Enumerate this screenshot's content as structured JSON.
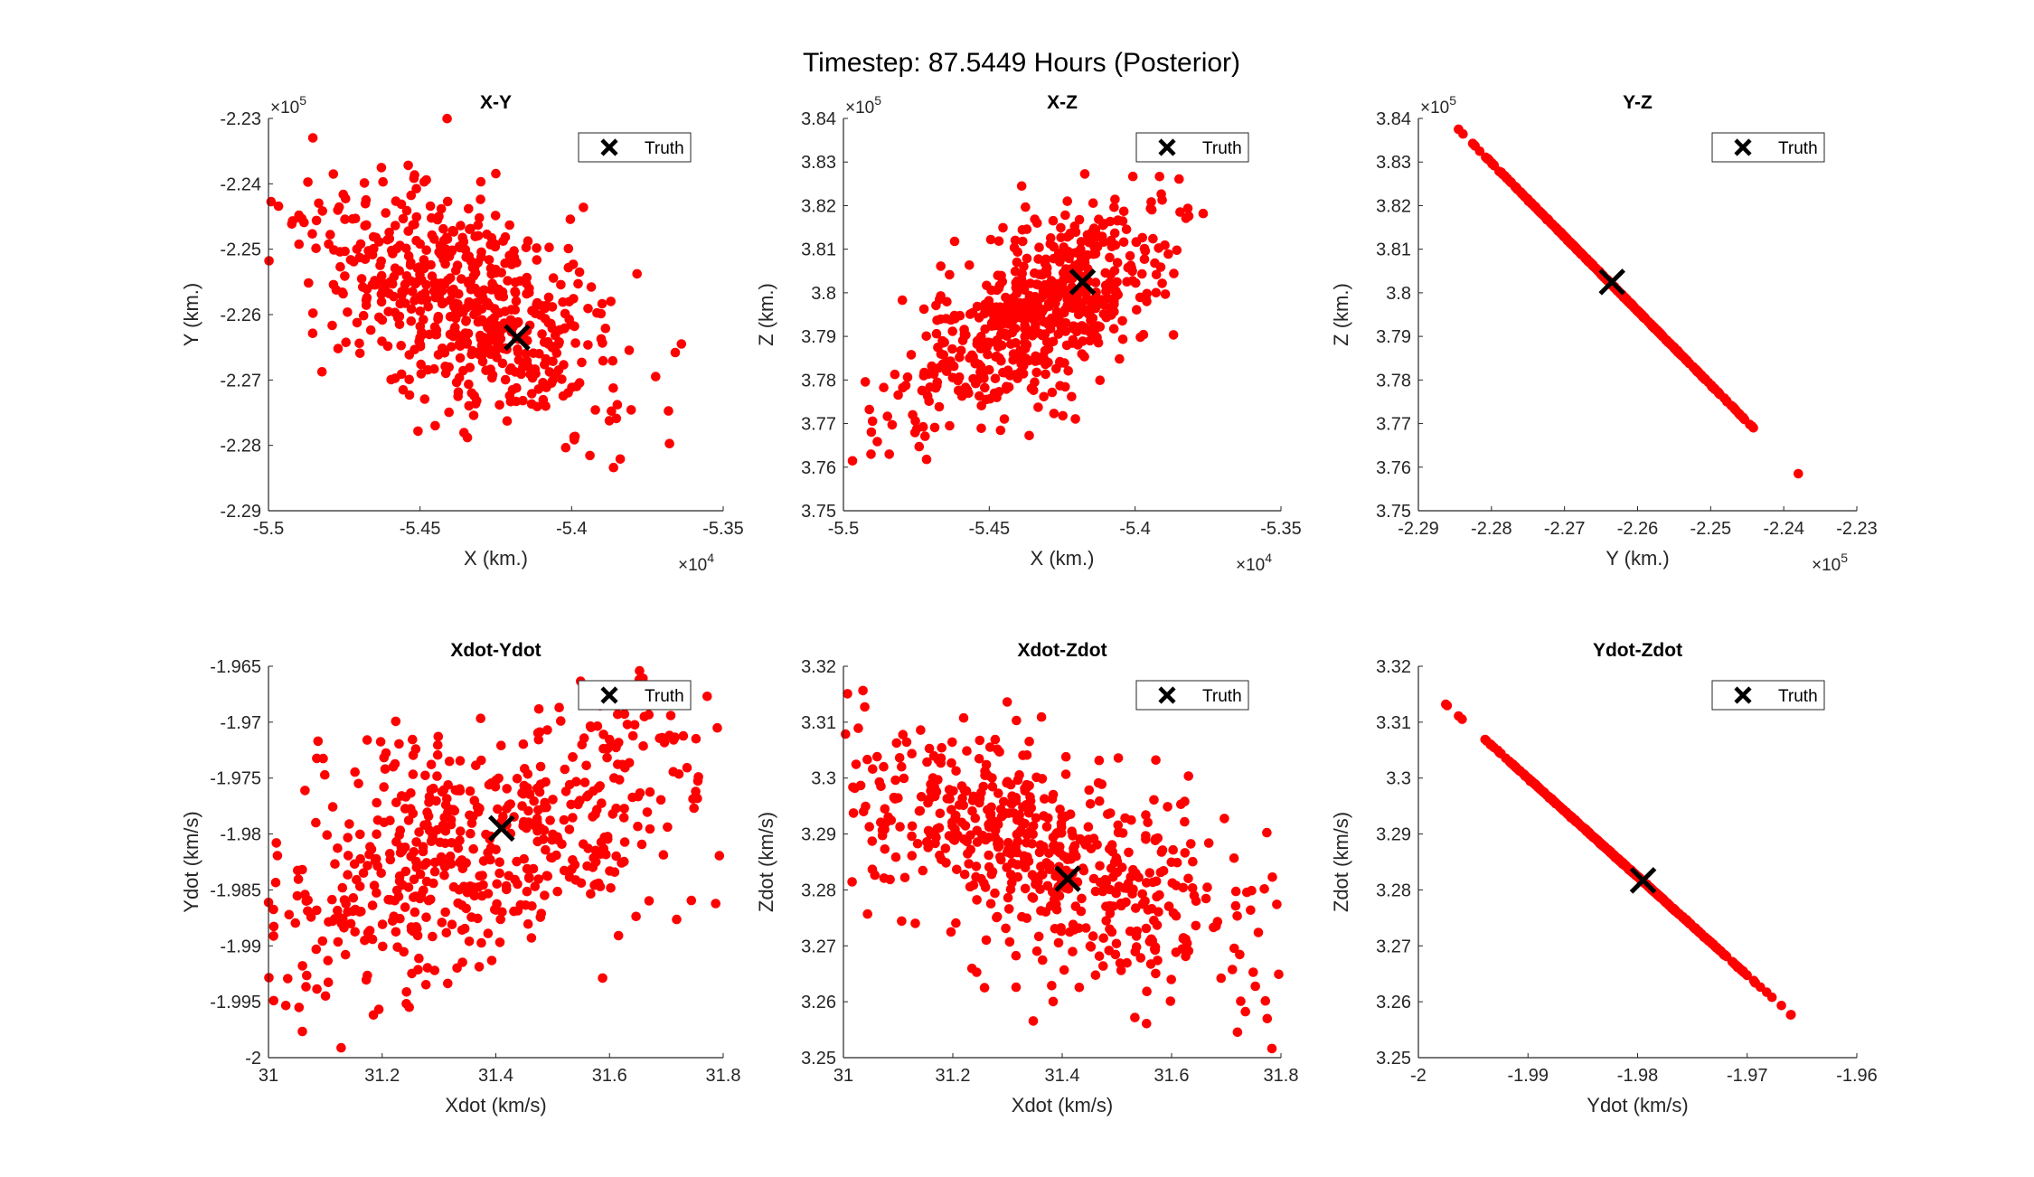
{
  "figure_title": "Timestep: 87.5449 Hours (Posterior)",
  "colors": {
    "scatter": "#ff0000",
    "truth": "#000000",
    "axis": "#262626"
  },
  "chart_data": [
    {
      "type": "scatter",
      "title": "X-Y",
      "xlabel": "X (km.)",
      "ylabel": "Y (km.)",
      "xlim": [
        -55000,
        -53500
      ],
      "ylim": [
        -229000,
        -223000
      ],
      "xticks": [
        -55000,
        -54500,
        -54000,
        -53500
      ],
      "xtick_labels": [
        "-5.5",
        "-5.45",
        "-5.4",
        "-5.35"
      ],
      "yticks": [
        -229000,
        -228000,
        -227000,
        -226000,
        -225000,
        -224000,
        -223000
      ],
      "ytick_labels": [
        "-2.29",
        "-2.28",
        "-2.27",
        "-2.26",
        "-2.25",
        "-2.24",
        "-2.23"
      ],
      "x_exponent": "4",
      "y_exponent": "5",
      "cloud": {
        "mean": [
          -54350,
          -225800
        ],
        "sd_major": 280,
        "sd_minor": 170,
        "n": 600,
        "seed": 11
      },
      "truth": {
        "x": -54180,
        "y": -226350
      },
      "legend": {
        "label": "Truth",
        "position": "top-right"
      }
    },
    {
      "type": "scatter",
      "title": "X-Z",
      "xlabel": "X (km.)",
      "ylabel": "Z (km.)",
      "xlim": [
        -55000,
        -53500
      ],
      "ylim": [
        375000,
        384000
      ],
      "xticks": [
        -55000,
        -54500,
        -54000,
        -53500
      ],
      "xtick_labels": [
        "-5.5",
        "-5.45",
        "-5.4",
        "-5.35"
      ],
      "yticks": [
        375000,
        376000,
        377000,
        378000,
        379000,
        380000,
        381000,
        382000,
        383000,
        384000
      ],
      "ytick_labels": [
        "3.75",
        "3.76",
        "3.77",
        "3.78",
        "3.79",
        "3.8",
        "3.81",
        "3.82",
        "3.83",
        "3.84"
      ],
      "x_exponent": "4",
      "y_exponent": "5",
      "cloud": {
        "mean": [
          -54350,
          379400
        ],
        "sd_major": 280,
        "sd_minor": 130,
        "n": 600,
        "seed": 23
      },
      "truth": {
        "x": -54180,
        "y": 380250
      },
      "legend": {
        "label": "Truth",
        "position": "top-right"
      }
    },
    {
      "type": "scatter",
      "title": "Y-Z",
      "xlabel": "Y (km.)",
      "ylabel": "Z (km.)",
      "xlim": [
        -229000,
        -223000
      ],
      "ylim": [
        375000,
        384000
      ],
      "xticks": [
        -229000,
        -228000,
        -227000,
        -226000,
        -225000,
        -224000,
        -223000
      ],
      "xtick_labels": [
        "-2.29",
        "-2.28",
        "-2.27",
        "-2.26",
        "-2.25",
        "-2.24",
        "-2.23"
      ],
      "yticks": [
        375000,
        376000,
        377000,
        378000,
        379000,
        380000,
        381000,
        382000,
        383000,
        384000
      ],
      "ytick_labels": [
        "3.75",
        "3.76",
        "3.77",
        "3.78",
        "3.79",
        "3.8",
        "3.81",
        "3.82",
        "3.83",
        "3.84"
      ],
      "x_exponent": "5",
      "y_exponent": "5",
      "line": {
        "x0": -228450,
        "y0": 383750,
        "x1": -223800,
        "y1": 375850,
        "center_t": 0.45,
        "sd_t": 0.17,
        "jitter": 0.004,
        "n": 600,
        "seed": 37
      },
      "truth": {
        "x": -226350,
        "y": 380250
      },
      "legend": {
        "label": "Truth",
        "position": "top-right"
      }
    },
    {
      "type": "scatter",
      "title": "Xdot-Ydot",
      "xlabel": "Xdot (km/s)",
      "ylabel": "Ydot (km/s)",
      "xlim": [
        31.0,
        31.8
      ],
      "ylim": [
        -2.0,
        -1.965
      ],
      "xticks": [
        31.0,
        31.2,
        31.4,
        31.6,
        31.8
      ],
      "xtick_labels": [
        "31",
        "31.2",
        "31.4",
        "31.6",
        "31.8"
      ],
      "yticks": [
        -2.0,
        -1.995,
        -1.99,
        -1.985,
        -1.98,
        -1.975,
        -1.97,
        -1.965
      ],
      "ytick_labels": [
        "-2",
        "-1.995",
        "-1.99",
        "-1.985",
        "-1.98",
        "-1.975",
        "-1.97",
        "-1.965"
      ],
      "cloud": {
        "mean": [
          31.36,
          -1.9812
        ],
        "sd_major": 0.25,
        "sd_minor": 0.12,
        "n": 600,
        "seed": 41
      },
      "truth": {
        "x": 31.41,
        "y": -1.9795
      },
      "legend": {
        "label": "Truth",
        "position": "top-right"
      }
    },
    {
      "type": "scatter",
      "title": "Xdot-Zdot",
      "xlabel": "Xdot (km/s)",
      "ylabel": "Zdot (km/s)",
      "xlim": [
        31.0,
        31.8
      ],
      "ylim": [
        3.25,
        3.32
      ],
      "xticks": [
        31.0,
        31.2,
        31.4,
        31.6,
        31.8
      ],
      "xtick_labels": [
        "31",
        "31.2",
        "31.4",
        "31.6",
        "31.8"
      ],
      "yticks": [
        3.25,
        3.26,
        3.27,
        3.28,
        3.29,
        3.3,
        3.31,
        3.32
      ],
      "ytick_labels": [
        "3.25",
        "3.26",
        "3.27",
        "3.28",
        "3.29",
        "3.3",
        "3.31",
        "3.32"
      ],
      "cloud": {
        "mean": [
          31.37,
          3.2855
        ],
        "sd_major": 0.24,
        "sd_minor": 0.1,
        "n": 600,
        "seed": 53
      },
      "truth": {
        "x": 31.41,
        "y": 3.282
      },
      "legend": {
        "label": "Truth",
        "position": "top-right"
      }
    },
    {
      "type": "scatter",
      "title": "Ydot-Zdot",
      "xlabel": "Ydot (km/s)",
      "ylabel": "Zdot (km/s)",
      "xlim": [
        -2.0,
        -1.96
      ],
      "ylim": [
        3.25,
        3.32
      ],
      "xticks": [
        -2.0,
        -1.99,
        -1.98,
        -1.97,
        -1.96
      ],
      "xtick_labels": [
        "-2",
        "-1.99",
        "-1.98",
        "-1.97",
        "-1.96"
      ],
      "yticks": [
        3.25,
        3.26,
        3.27,
        3.28,
        3.29,
        3.3,
        3.31,
        3.32
      ],
      "ytick_labels": [
        "3.25",
        "3.26",
        "3.27",
        "3.28",
        "3.29",
        "3.3",
        "3.31",
        "3.32"
      ],
      "line": {
        "x0": -1.9975,
        "y0": 3.3132,
        "x1": -1.966,
        "y1": 3.2577,
        "center_t": 0.5,
        "sd_t": 0.17,
        "jitter": 0.004,
        "n": 600,
        "seed": 67
      },
      "truth": {
        "x": -1.9795,
        "y": 3.2817
      },
      "legend": {
        "label": "Truth",
        "position": "top-right"
      }
    }
  ]
}
